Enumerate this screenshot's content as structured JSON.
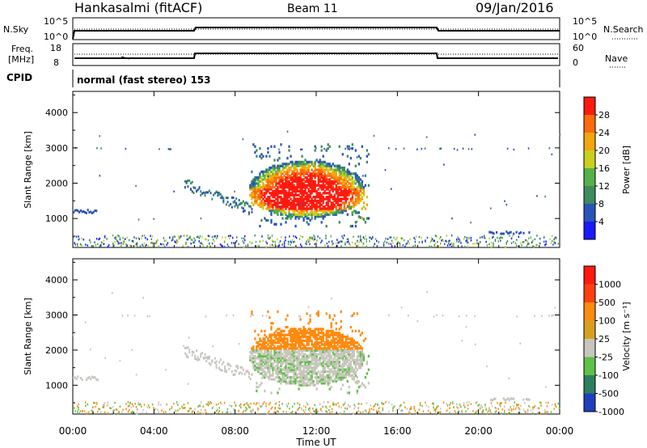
{
  "header": {
    "station": "Hankasalmi (fitACF)",
    "beam": "Beam 11",
    "date": "09/Jan/2016"
  },
  "top_panel": {
    "left_label": "N.Sky",
    "right_label": "N.Search",
    "left_ticks": [
      "10^5",
      "10^0"
    ],
    "right_ticks": [
      "10^5",
      "10^0"
    ]
  },
  "freq_panel": {
    "label_line1": "Freq.",
    "label_line2": "[MHz]",
    "left_ticks": [
      "18",
      "8"
    ],
    "right_label": "Nave",
    "right_ticks": [
      "60",
      "0"
    ]
  },
  "cpid": {
    "label": "CPID",
    "text": "normal (fast stereo) 153"
  },
  "power_panel": {
    "ylabel": "Slant Range [km]",
    "yticks": [
      "4000",
      "3000",
      "2000",
      "1000"
    ],
    "colorbar_label": "Power [dB]",
    "colorbar_ticks": [
      "28",
      "24",
      "20",
      "16",
      "12",
      "8",
      "4"
    ],
    "colors": [
      "#1a1aff",
      "#2a55b8",
      "#3f8a5f",
      "#55b14a",
      "#c9d01e",
      "#f2a60f",
      "#ff6a0a",
      "#ff1a10"
    ]
  },
  "velocity_panel": {
    "ylabel": "Slant Range [km]",
    "yticks": [
      "4000",
      "3000",
      "2000",
      "1000"
    ],
    "colorbar_label": "Velocity [m s⁻¹]",
    "colorbar_ticks": [
      "1000",
      "500",
      "100",
      "25",
      "-25",
      "-100",
      "-500",
      "-1000"
    ],
    "colors": [
      "#1f3fbf",
      "#2e7f5f",
      "#5fc04a",
      "#c8c6bc",
      "#d8a020",
      "#ff8a10",
      "#ff4010",
      "#ff1a10"
    ]
  },
  "xaxis": {
    "ticks": [
      "00:00",
      "04:00",
      "08:00",
      "12:00",
      "16:00",
      "20:00",
      "00:00"
    ],
    "label": "Time UT"
  },
  "chart_data": {
    "type": "heatmap",
    "x_range_hours": [
      0,
      24
    ],
    "y_range_km": [
      180,
      4600
    ],
    "power_scale_db": [
      0,
      32
    ],
    "velocity_scale": [
      -1000,
      1000
    ],
    "echo_regions": [
      {
        "t": [
          8.8,
          14.5
        ],
        "r": [
          800,
          3100
        ]
      },
      {
        "t": [
          5.5,
          8.8
        ],
        "r": [
          1400,
          2200
        ]
      },
      {
        "t": [
          0.0,
          1.2
        ],
        "r": [
          1150,
          1300
        ]
      },
      {
        "t": [
          20.5,
          22.5
        ],
        "r": [
          580,
          700
        ]
      },
      {
        "t": [
          0.0,
          24.0
        ],
        "r": [
          200,
          550
        ]
      }
    ]
  }
}
